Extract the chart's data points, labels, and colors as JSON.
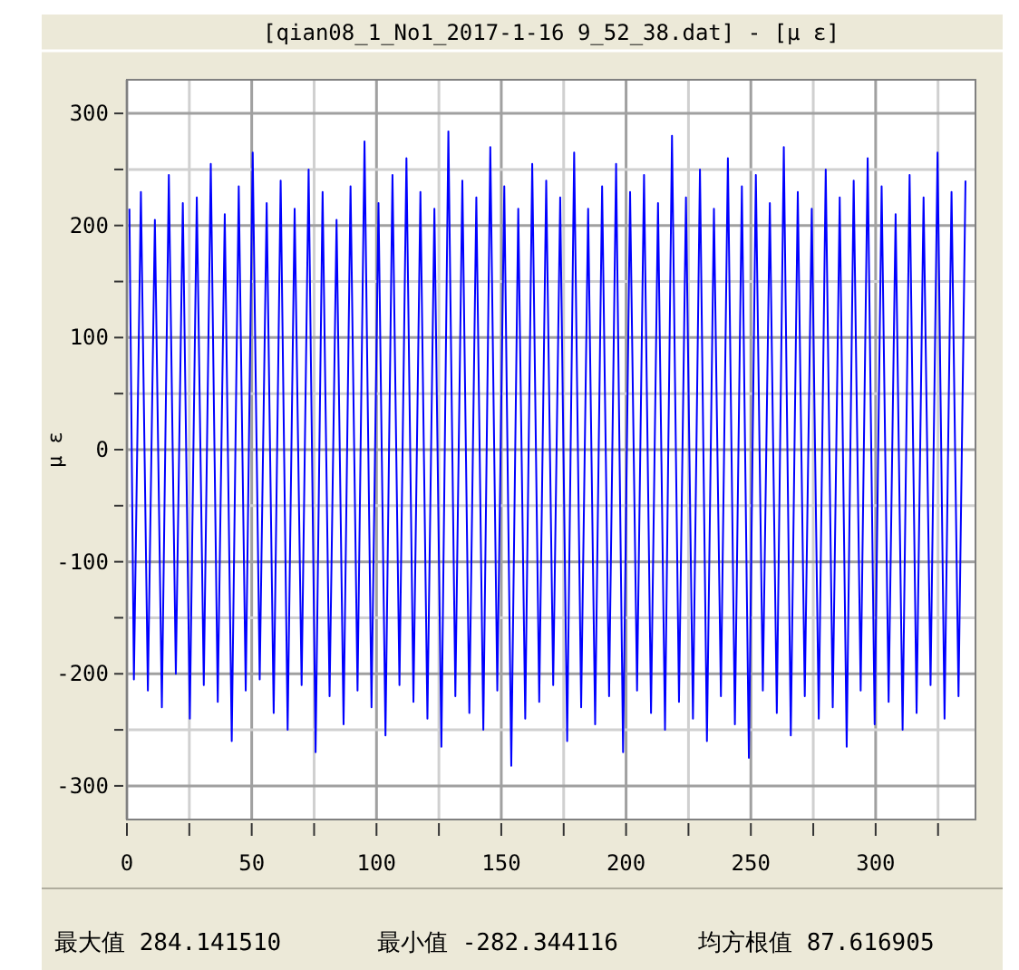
{
  "chart_data": {
    "type": "line",
    "title": "[qian08_1_No1_2017-1-16 9_52_38.dat] - [μ ε]",
    "ylabel": "μ ε",
    "xlim": [
      0,
      340
    ],
    "ylim": [
      -330,
      330
    ],
    "xticks": [
      0,
      {
        "value": 25,
        "label": null
      },
      50,
      {
        "value": 75,
        "label": null
      },
      100,
      {
        "value": 125,
        "label": null
      },
      150,
      {
        "value": 175,
        "label": null
      },
      200,
      {
        "value": 225,
        "label": null
      },
      250,
      {
        "value": 275,
        "label": null
      },
      300,
      {
        "value": 325,
        "label": null
      }
    ],
    "yticks": [
      -300,
      {
        "value": -250,
        "label": null
      },
      -200,
      {
        "value": -150,
        "label": null
      },
      -100,
      {
        "value": -50,
        "label": null
      },
      0,
      {
        "value": 50,
        "label": null
      },
      100,
      {
        "value": 150,
        "label": null
      },
      200,
      {
        "value": 250,
        "label": null
      },
      300
    ],
    "grid": true,
    "marker": "none",
    "line_style": "solid",
    "annotations": [
      "最大值 284.141510",
      "最小值 -282.344116",
      "均方根值 87.616905"
    ],
    "series": [
      {
        "color": "#0000ff",
        "x": [
          1,
          2.8,
          5.6,
          8.4,
          11.2,
          14,
          16.8,
          19.6,
          22.4,
          25.2,
          28,
          30.8,
          33.6,
          36.4,
          39.2,
          42,
          44.8,
          47.6,
          50.4,
          53.2,
          56,
          58.8,
          61.6,
          64.4,
          67.2,
          70,
          72.8,
          75.6,
          78.4,
          81.2,
          84,
          86.8,
          89.6,
          92.4,
          95.2,
          98,
          100.8,
          103.6,
          106.4,
          109.2,
          112,
          114.8,
          117.6,
          120.4,
          123.2,
          126,
          128.8,
          131.6,
          134.4,
          137.2,
          140,
          142.8,
          145.6,
          148.4,
          151.2,
          154,
          156.8,
          159.6,
          162.4,
          165.2,
          168,
          170.8,
          173.6,
          176.4,
          179.2,
          182,
          184.8,
          187.6,
          190.4,
          193.2,
          196,
          198.8,
          201.6,
          204.4,
          207.2,
          210,
          212.8,
          215.6,
          218.4,
          221.2,
          224,
          226.8,
          229.6,
          232.4,
          235.2,
          238,
          240.8,
          243.6,
          246.4,
          249.2,
          252,
          254.8,
          257.6,
          260.4,
          263.2,
          266,
          268.8,
          271.6,
          274.4,
          277.2,
          280,
          282.8,
          285.6,
          288.4,
          291.2,
          294,
          296.8,
          299.6,
          302.4,
          305.2,
          308,
          310.8,
          313.6,
          316.4,
          319.2,
          322,
          324.8,
          327.6,
          330.4,
          333.2,
          336
        ],
        "values": [
          215,
          -205,
          230,
          -215,
          205,
          -230,
          245,
          -200,
          220,
          -240,
          225,
          -210,
          255,
          -225,
          210,
          -260,
          235,
          -215,
          265,
          -205,
          220,
          -235,
          240,
          -250,
          215,
          -210,
          250,
          -270,
          230,
          -220,
          205,
          -245,
          235,
          -215,
          275,
          -230,
          220,
          -255,
          245,
          -210,
          260,
          -225,
          230,
          -240,
          215,
          -265,
          284,
          -220,
          240,
          -235,
          225,
          -250,
          270,
          -215,
          235,
          -282,
          215,
          -240,
          255,
          -225,
          240,
          -210,
          225,
          -260,
          265,
          -230,
          215,
          -245,
          235,
          -220,
          255,
          -270,
          230,
          -215,
          245,
          -235,
          220,
          -250,
          280,
          -225,
          225,
          -240,
          250,
          -260,
          215,
          -220,
          260,
          -245,
          235,
          -275,
          245,
          -215,
          220,
          -235,
          270,
          -255,
          230,
          -220,
          215,
          -240,
          250,
          -230,
          225,
          -265,
          240,
          -215,
          260,
          -245,
          235,
          -225,
          210,
          -250,
          245,
          -235,
          225,
          -210,
          265,
          -240,
          230,
          -220,
          240
        ]
      }
    ]
  }
}
